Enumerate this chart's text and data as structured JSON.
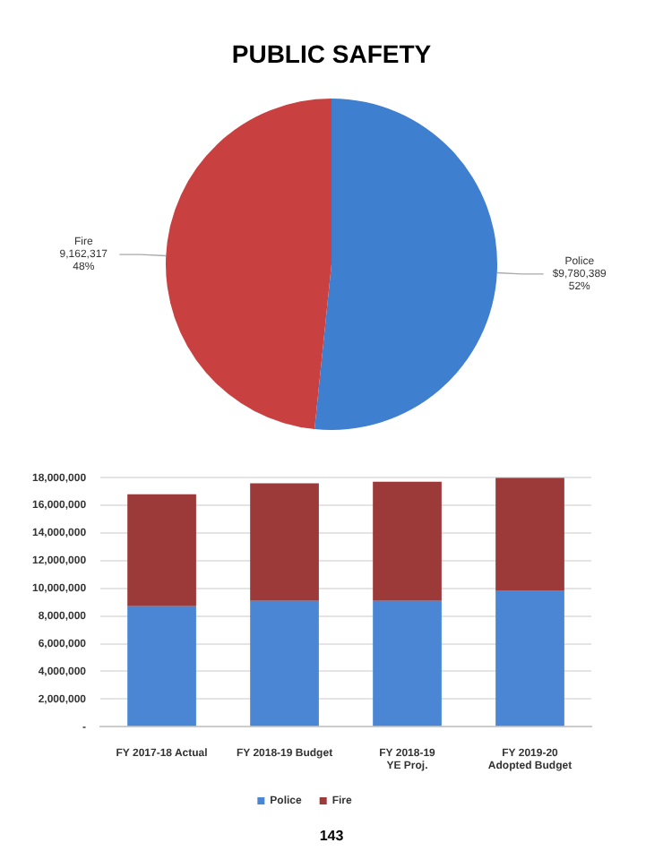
{
  "chart_data": [
    {
      "type": "pie",
      "title": "PUBLIC SAFETY",
      "categories": [
        "Police",
        "Fire"
      ],
      "values": [
        9780389,
        9162317
      ],
      "colors": [
        "#3f7fcf",
        "#c94040"
      ],
      "value_labels": [
        "$9,780,389\n52%",
        "9,162,317\n48%"
      ],
      "legend": false
    },
    {
      "type": "bar",
      "stacked": true,
      "categories": [
        "FY 2017-18 Actual",
        "FY 2018-19 Budget",
        "FY 2018-19\nYE Proj.",
        "FY 2019-20\nAdopted Budget"
      ],
      "series": [
        {
          "name": "Police",
          "color": "#4a86d4",
          "values": [
            8700000,
            9100000,
            9100000,
            9800000
          ]
        },
        {
          "name": "Fire",
          "color": "#9c3a3a",
          "values": [
            8100000,
            8500000,
            8600000,
            8200000
          ]
        }
      ],
      "ylim": [
        0,
        18000000
      ],
      "yticks": [
        {
          "value": 0,
          "label": "-"
        },
        {
          "value": 2000000,
          "label": "2,000,000"
        },
        {
          "value": 4000000,
          "label": "4,000,000"
        },
        {
          "value": 6000000,
          "label": "6,000,000"
        },
        {
          "value": 8000000,
          "label": "8,000,000"
        },
        {
          "value": 10000000,
          "label": "10,000,000"
        },
        {
          "value": 12000000,
          "label": "12,000,000"
        },
        {
          "value": 14000000,
          "label": "14,000,000"
        },
        {
          "value": 16000000,
          "label": "16,000,000"
        },
        {
          "value": 18000000,
          "label": "18,000,000"
        }
      ],
      "grid": "y",
      "legend": "bottom",
      "annotations": [
        "143"
      ]
    }
  ]
}
